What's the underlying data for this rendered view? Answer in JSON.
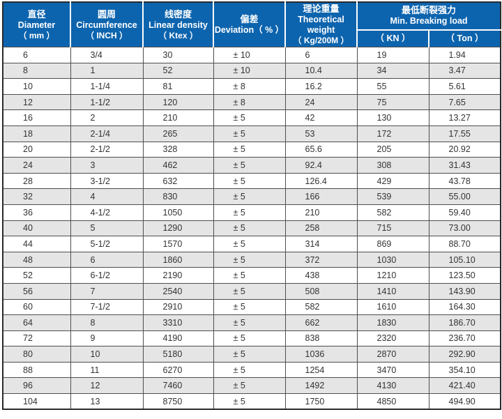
{
  "theme": {
    "header_bg": "#0d64ae",
    "header_text": "#ffffff",
    "row_bg": "#ffffff",
    "row_alt_bg": "#e5e5e5",
    "grid_border": "#4d4d4d",
    "outer_border": "#2a2a2a",
    "cell_text": "#333333"
  },
  "table": {
    "columns": [
      {
        "zh": "直径",
        "en": "Diameter",
        "unit": "（ mm ）"
      },
      {
        "zh": "圆周",
        "en": "Circumference",
        "unit": "（ INCH ）"
      },
      {
        "zh": "线密度",
        "en": "Linear density",
        "unit": "（ Ktex ）"
      },
      {
        "zh": "偏差",
        "en": "Deviation（ % ）",
        "unit": ""
      },
      {
        "zh": "理论重量",
        "en": "Theoretical weight",
        "unit": "（ Kg/200M ）"
      }
    ],
    "group_column": {
      "zh": "最低断裂强力",
      "en": "Min. Breaking load",
      "sub": [
        "（ KN ）",
        "（ Ton ）"
      ]
    },
    "rows": [
      [
        "6",
        "3/4",
        "30",
        "± 10",
        "6",
        "19",
        "1.94"
      ],
      [
        "8",
        "1",
        "52",
        "± 10",
        "10.4",
        "34",
        "3.47"
      ],
      [
        "10",
        "1-1/4",
        "81",
        "± 8",
        "16.2",
        "55",
        "5.61"
      ],
      [
        "12",
        "1-1/2",
        "120",
        "± 8",
        "24",
        "75",
        "7.65"
      ],
      [
        "16",
        "2",
        "210",
        "± 5",
        "42",
        "130",
        "13.27"
      ],
      [
        "18",
        "2-1/4",
        "265",
        "± 5",
        "53",
        "172",
        "17.55"
      ],
      [
        "20",
        "2-1/2",
        "328",
        "± 5",
        "65.6",
        "205",
        "20.92"
      ],
      [
        "24",
        "3",
        "462",
        "± 5",
        "92.4",
        "308",
        "31.43"
      ],
      [
        "28",
        "3-1/2",
        "632",
        "± 5",
        "126.4",
        "429",
        "43.78"
      ],
      [
        "32",
        "4",
        "830",
        "± 5",
        "166",
        "539",
        "55.00"
      ],
      [
        "36",
        "4-1/2",
        "1050",
        "± 5",
        "210",
        "582",
        "59.40"
      ],
      [
        "40",
        "5",
        "1290",
        "± 5",
        "258",
        "715",
        "73.00"
      ],
      [
        "44",
        "5-1/2",
        "1570",
        "± 5",
        "314",
        "869",
        "88.70"
      ],
      [
        "48",
        "6",
        "1860",
        "± 5",
        "372",
        "1030",
        "105.10"
      ],
      [
        "52",
        "6-1/2",
        "2190",
        "± 5",
        "438",
        "1210",
        "123.50"
      ],
      [
        "56",
        "7",
        "2540",
        "± 5",
        "508",
        "1410",
        "143.90"
      ],
      [
        "60",
        "7-1/2",
        "2910",
        "± 5",
        "582",
        "1610",
        "164.30"
      ],
      [
        "64",
        "8",
        "3310",
        "± 5",
        "662",
        "1830",
        "186.70"
      ],
      [
        "72",
        "9",
        "4190",
        "± 5",
        "838",
        "2320",
        "236.70"
      ],
      [
        "80",
        "10",
        "5180",
        "± 5",
        "1036",
        "2870",
        "292.90"
      ],
      [
        "88",
        "11",
        "6270",
        "± 5",
        "1254",
        "3470",
        "354.10"
      ],
      [
        "96",
        "12",
        "7460",
        "± 5",
        "1492",
        "4130",
        "421.40"
      ],
      [
        "104",
        "13",
        "8750",
        "± 5",
        "1750",
        "4850",
        "494.90"
      ]
    ]
  }
}
